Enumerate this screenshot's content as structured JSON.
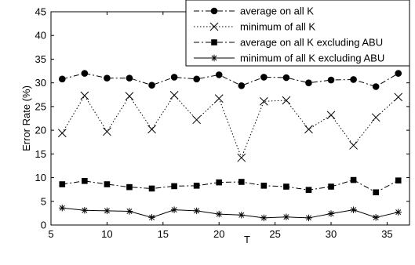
{
  "chart_data": {
    "type": "line",
    "xlabel": "T",
    "ylabel": "Error Rate (%)",
    "xlim": [
      5,
      37
    ],
    "ylim": [
      0,
      45
    ],
    "xticks": [
      5,
      10,
      15,
      20,
      25,
      30,
      35
    ],
    "yticks": [
      0,
      5,
      10,
      15,
      20,
      25,
      30,
      35,
      40,
      45
    ],
    "grid": false,
    "legend_position": "top-right",
    "x": [
      6,
      8,
      10,
      12,
      14,
      16,
      18,
      20,
      22,
      24,
      26,
      28,
      30,
      32,
      34,
      36
    ],
    "series": [
      {
        "name": "average on all K",
        "marker": "circle",
        "line_style": "dash-dot",
        "values": [
          30.8,
          32.0,
          31.0,
          31.0,
          29.5,
          31.2,
          30.8,
          31.7,
          29.4,
          31.2,
          31.1,
          30.0,
          30.6,
          30.7,
          29.2,
          32.0
        ]
      },
      {
        "name": "minimum of all K",
        "marker": "x",
        "line_style": "dotted",
        "values": [
          19.4,
          27.3,
          19.7,
          27.2,
          20.2,
          27.4,
          22.2,
          26.7,
          14.2,
          26.1,
          26.3,
          20.2,
          23.2,
          16.8,
          22.7,
          27.0
        ]
      },
      {
        "name": "average on all K excluding ABU",
        "marker": "square",
        "line_style": "dash-dot",
        "values": [
          8.6,
          9.3,
          8.6,
          8.0,
          7.7,
          8.2,
          8.3,
          9.0,
          9.1,
          8.3,
          8.1,
          7.4,
          8.1,
          9.5,
          6.9,
          9.4
        ]
      },
      {
        "name": "minimum of all K excluding ABU",
        "marker": "asterisk",
        "line_style": "solid",
        "values": [
          3.6,
          3.1,
          3.0,
          2.9,
          1.6,
          3.2,
          3.0,
          2.3,
          2.1,
          1.5,
          1.7,
          1.5,
          2.4,
          3.2,
          1.6,
          2.7
        ]
      }
    ]
  }
}
